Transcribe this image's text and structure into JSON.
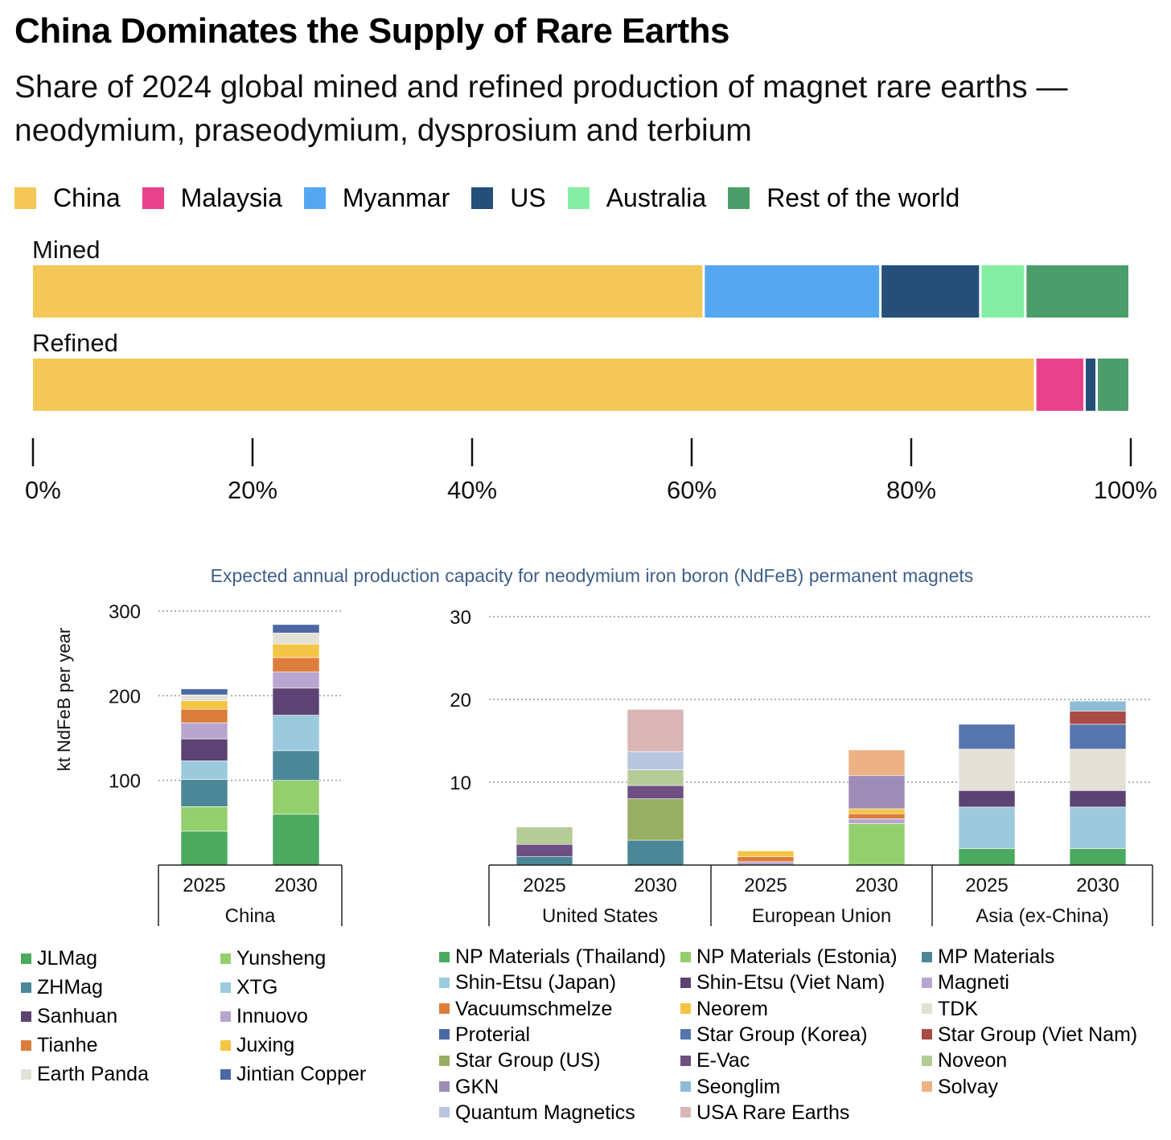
{
  "title": "China Dominates the Supply of Rare Earths",
  "subtitle": "Share of 2024 global mined and refined production of magnet rare earths — neodymium, praseodymium, dysprosium and terbium",
  "legend": [
    {
      "name": "China",
      "color": "#f4c858"
    },
    {
      "name": "Malaysia",
      "color": "#e8428c"
    },
    {
      "name": "Myanmar",
      "color": "#55a7f2"
    },
    {
      "name": "US",
      "color": "#254f7a"
    },
    {
      "name": "Australia",
      "color": "#84efa4"
    },
    {
      "name": "Rest of the world",
      "color": "#4b9e6a"
    }
  ],
  "chart_data": [
    {
      "type": "bar",
      "orientation": "horizontal-stacked-percent",
      "categories": [
        "Mined",
        "Refined"
      ],
      "series": [
        {
          "name": "China",
          "values": [
            61.2,
            91.4
          ]
        },
        {
          "name": "Malaysia",
          "values": [
            0,
            4.5
          ]
        },
        {
          "name": "Myanmar",
          "values": [
            16.1,
            0
          ]
        },
        {
          "name": "US",
          "values": [
            9.1,
            1.1
          ]
        },
        {
          "name": "Australia",
          "values": [
            4.1,
            0
          ]
        },
        {
          "name": "Rest of the world",
          "values": [
            9.5,
            3.0
          ]
        }
      ],
      "xlim": [
        0,
        100
      ],
      "ticks": [
        "0%",
        "20%",
        "40%",
        "60%",
        "80%",
        "100%"
      ]
    },
    {
      "type": "bar",
      "title": "Expected annual production capacity for neodymium iron boron (NdFeB) permanent magnets",
      "ylabel": "kt NdFeB per year",
      "panels": [
        {
          "name": "China-panel",
          "ylim": [
            0,
            300
          ],
          "yticks": [
            "100",
            "200",
            "300"
          ],
          "groups": [
            {
              "label": "China",
              "bars": [
                {
                  "year": "2025",
                  "stack": [
                    [
                      "JLMag",
                      40
                    ],
                    [
                      "Yunsheng",
                      29
                    ],
                    [
                      "ZHMag",
                      32
                    ],
                    [
                      "XTG",
                      22
                    ],
                    [
                      "Sanhuan",
                      26
                    ],
                    [
                      "Innuovo",
                      19
                    ],
                    [
                      "Tianhe",
                      16
                    ],
                    [
                      "Juxing",
                      10
                    ],
                    [
                      "Earth Panda",
                      7
                    ],
                    [
                      "Jintian Copper",
                      7
                    ]
                  ]
                },
                {
                  "year": "2030",
                  "stack": [
                    [
                      "JLMag",
                      60
                    ],
                    [
                      "Yunsheng",
                      40
                    ],
                    [
                      "ZHMag",
                      35
                    ],
                    [
                      "XTG",
                      42
                    ],
                    [
                      "Sanhuan",
                      32
                    ],
                    [
                      "Innuovo",
                      19
                    ],
                    [
                      "Tianhe",
                      17
                    ],
                    [
                      "Juxing",
                      16
                    ],
                    [
                      "Earth Panda",
                      13
                    ],
                    [
                      "Jintian Copper",
                      10
                    ]
                  ]
                }
              ]
            }
          ]
        },
        {
          "name": "rest-panel",
          "ylim": [
            0,
            30
          ],
          "yticks": [
            "10",
            "20",
            "30"
          ],
          "groups": [
            {
              "label": "United States",
              "bars": [
                {
                  "year": "2025",
                  "stack": [
                    [
                      "MP Materials",
                      1.0
                    ],
                    [
                      "E-Vac",
                      1.5
                    ],
                    [
                      "Noveon",
                      2.1
                    ]
                  ]
                },
                {
                  "year": "2030",
                  "stack": [
                    [
                      "MP Materials",
                      3.0
                    ],
                    [
                      "Star Group (US)",
                      5.0
                    ],
                    [
                      "E-Vac",
                      1.6
                    ],
                    [
                      "Noveon",
                      1.9
                    ],
                    [
                      "Quantum Magnetics",
                      2.2
                    ],
                    [
                      "USA Rare Earths",
                      5.1
                    ]
                  ]
                }
              ]
            },
            {
              "label": "European Union",
              "bars": [
                {
                  "year": "2025",
                  "stack": [
                    [
                      "Magneti",
                      0.4
                    ],
                    [
                      "Vacuumschmelze",
                      0.6
                    ],
                    [
                      "Neorem",
                      0.7
                    ]
                  ]
                },
                {
                  "year": "2030",
                  "stack": [
                    [
                      "NP Materials (Estonia)",
                      5.0
                    ],
                    [
                      "Magneti",
                      0.6
                    ],
                    [
                      "Vacuumschmelze",
                      0.6
                    ],
                    [
                      "Neorem",
                      0.6
                    ],
                    [
                      "GKN",
                      4.0
                    ],
                    [
                      "Solvay",
                      3.1
                    ]
                  ]
                }
              ]
            },
            {
              "label": "Asia (ex-China)",
              "bars": [
                {
                  "year": "2025",
                  "stack": [
                    [
                      "NP Materials (Thailand)",
                      2.0
                    ],
                    [
                      "Shin-Etsu (Japan)",
                      5.0
                    ],
                    [
                      "Shin-Etsu (Viet Nam)",
                      2.0
                    ],
                    [
                      "TDK",
                      5.0
                    ],
                    [
                      "Star Group (Korea)",
                      3.0
                    ]
                  ]
                },
                {
                  "year": "2030",
                  "stack": [
                    [
                      "NP Materials (Thailand)",
                      2.0
                    ],
                    [
                      "Shin-Etsu (Japan)",
                      5.0
                    ],
                    [
                      "Shin-Etsu (Viet Nam)",
                      2.0
                    ],
                    [
                      "TDK",
                      5.0
                    ],
                    [
                      "Star Group (Korea)",
                      3.0
                    ],
                    [
                      "Star Group (Viet Nam)",
                      1.6
                    ],
                    [
                      "Seonglim",
                      1.2
                    ]
                  ]
                }
              ]
            }
          ]
        }
      ]
    }
  ],
  "magnet_legend_china": [
    {
      "name": "JLMag",
      "color": "#4aaa5e"
    },
    {
      "name": "Yunsheng",
      "color": "#93cf6d"
    },
    {
      "name": "ZHMag",
      "color": "#4a8797"
    },
    {
      "name": "XTG",
      "color": "#9ccadd"
    },
    {
      "name": "Sanhuan",
      "color": "#5c4373"
    },
    {
      "name": "Innuovo",
      "color": "#b9a6ce"
    },
    {
      "name": "Tianhe",
      "color": "#dd7d3b"
    },
    {
      "name": "Juxing",
      "color": "#f4c445"
    },
    {
      "name": "Earth Panda",
      "color": "#e3e1d5"
    },
    {
      "name": "Jintian Copper",
      "color": "#4b68a4"
    }
  ],
  "magnet_legend_rest": [
    {
      "name": "NP Materials (Thailand)",
      "color": "#4aaa5e"
    },
    {
      "name": "NP Materials (Estonia)",
      "color": "#93cf6d"
    },
    {
      "name": "MP Materials",
      "color": "#4a8797"
    },
    {
      "name": "Shin-Etsu (Japan)",
      "color": "#9ccadd"
    },
    {
      "name": "Shin-Etsu (Viet Nam)",
      "color": "#5c4373"
    },
    {
      "name": "Magneti",
      "color": "#b9a6ce"
    },
    {
      "name": "Vacuumschmelze",
      "color": "#dd7d3b"
    },
    {
      "name": "Neorem",
      "color": "#f4c445"
    },
    {
      "name": "TDK",
      "color": "#e3e1d5"
    },
    {
      "name": "Proterial",
      "color": "#4b68a4"
    },
    {
      "name": "Star Group (Korea)",
      "color": "#5675ad"
    },
    {
      "name": "Star Group (Viet Nam)",
      "color": "#a94b47"
    },
    {
      "name": "Star Group (US)",
      "color": "#98ae63"
    },
    {
      "name": "E-Vac",
      "color": "#6f4e82"
    },
    {
      "name": "Noveon",
      "color": "#b4cc95"
    },
    {
      "name": "GKN",
      "color": "#9e8cb6"
    },
    {
      "name": "Seonglim",
      "color": "#8cbcd6"
    },
    {
      "name": "Solvay",
      "color": "#ecb285"
    },
    {
      "name": "Quantum Magnetics",
      "color": "#b8c6e0"
    },
    {
      "name": "USA Rare Earths",
      "color": "#dab5b5"
    }
  ]
}
